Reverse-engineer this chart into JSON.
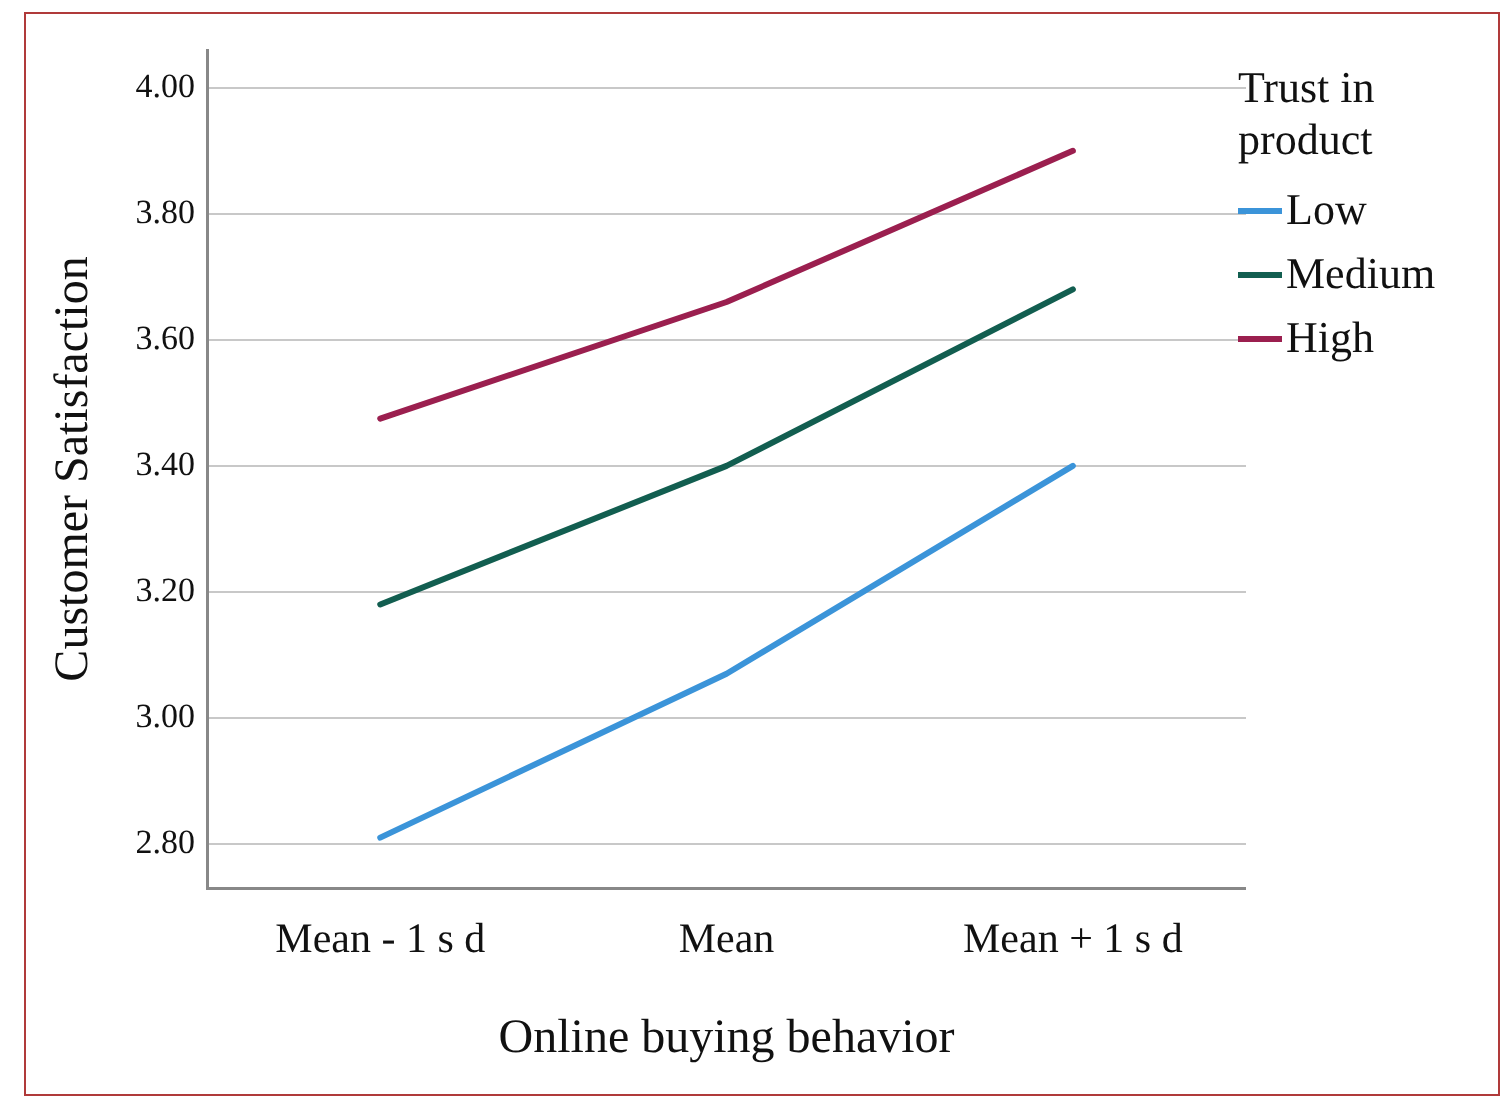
{
  "chart_data": {
    "type": "line",
    "xlabel": "Online buying behavior",
    "ylabel": "Customer Satisfaction",
    "legend_title": "Trust in product",
    "categories": [
      "Mean - 1 s d",
      "Mean",
      "Mean + 1 s d"
    ],
    "series": [
      {
        "name": "Low",
        "color": "#3b94d9",
        "values": [
          2.81,
          3.07,
          3.4
        ]
      },
      {
        "name": "Medium",
        "color": "#125e50",
        "values": [
          3.18,
          3.4,
          3.68
        ]
      },
      {
        "name": "High",
        "color": "#9b1f4f",
        "values": [
          3.475,
          3.66,
          3.9
        ]
      }
    ],
    "ylim": [
      2.73,
      4.06
    ],
    "yticks": [
      {
        "value": 2.8,
        "label": "2.80"
      },
      {
        "value": 3.0,
        "label": "3.00"
      },
      {
        "value": 3.2,
        "label": "3.20"
      },
      {
        "value": 3.4,
        "label": "3.40"
      },
      {
        "value": 3.6,
        "label": "3.60"
      },
      {
        "value": 3.8,
        "label": "3.80"
      },
      {
        "value": 4.0,
        "label": "4.00"
      }
    ],
    "grid": "y",
    "legend": "right",
    "marker": "none",
    "line_style": "solid"
  }
}
